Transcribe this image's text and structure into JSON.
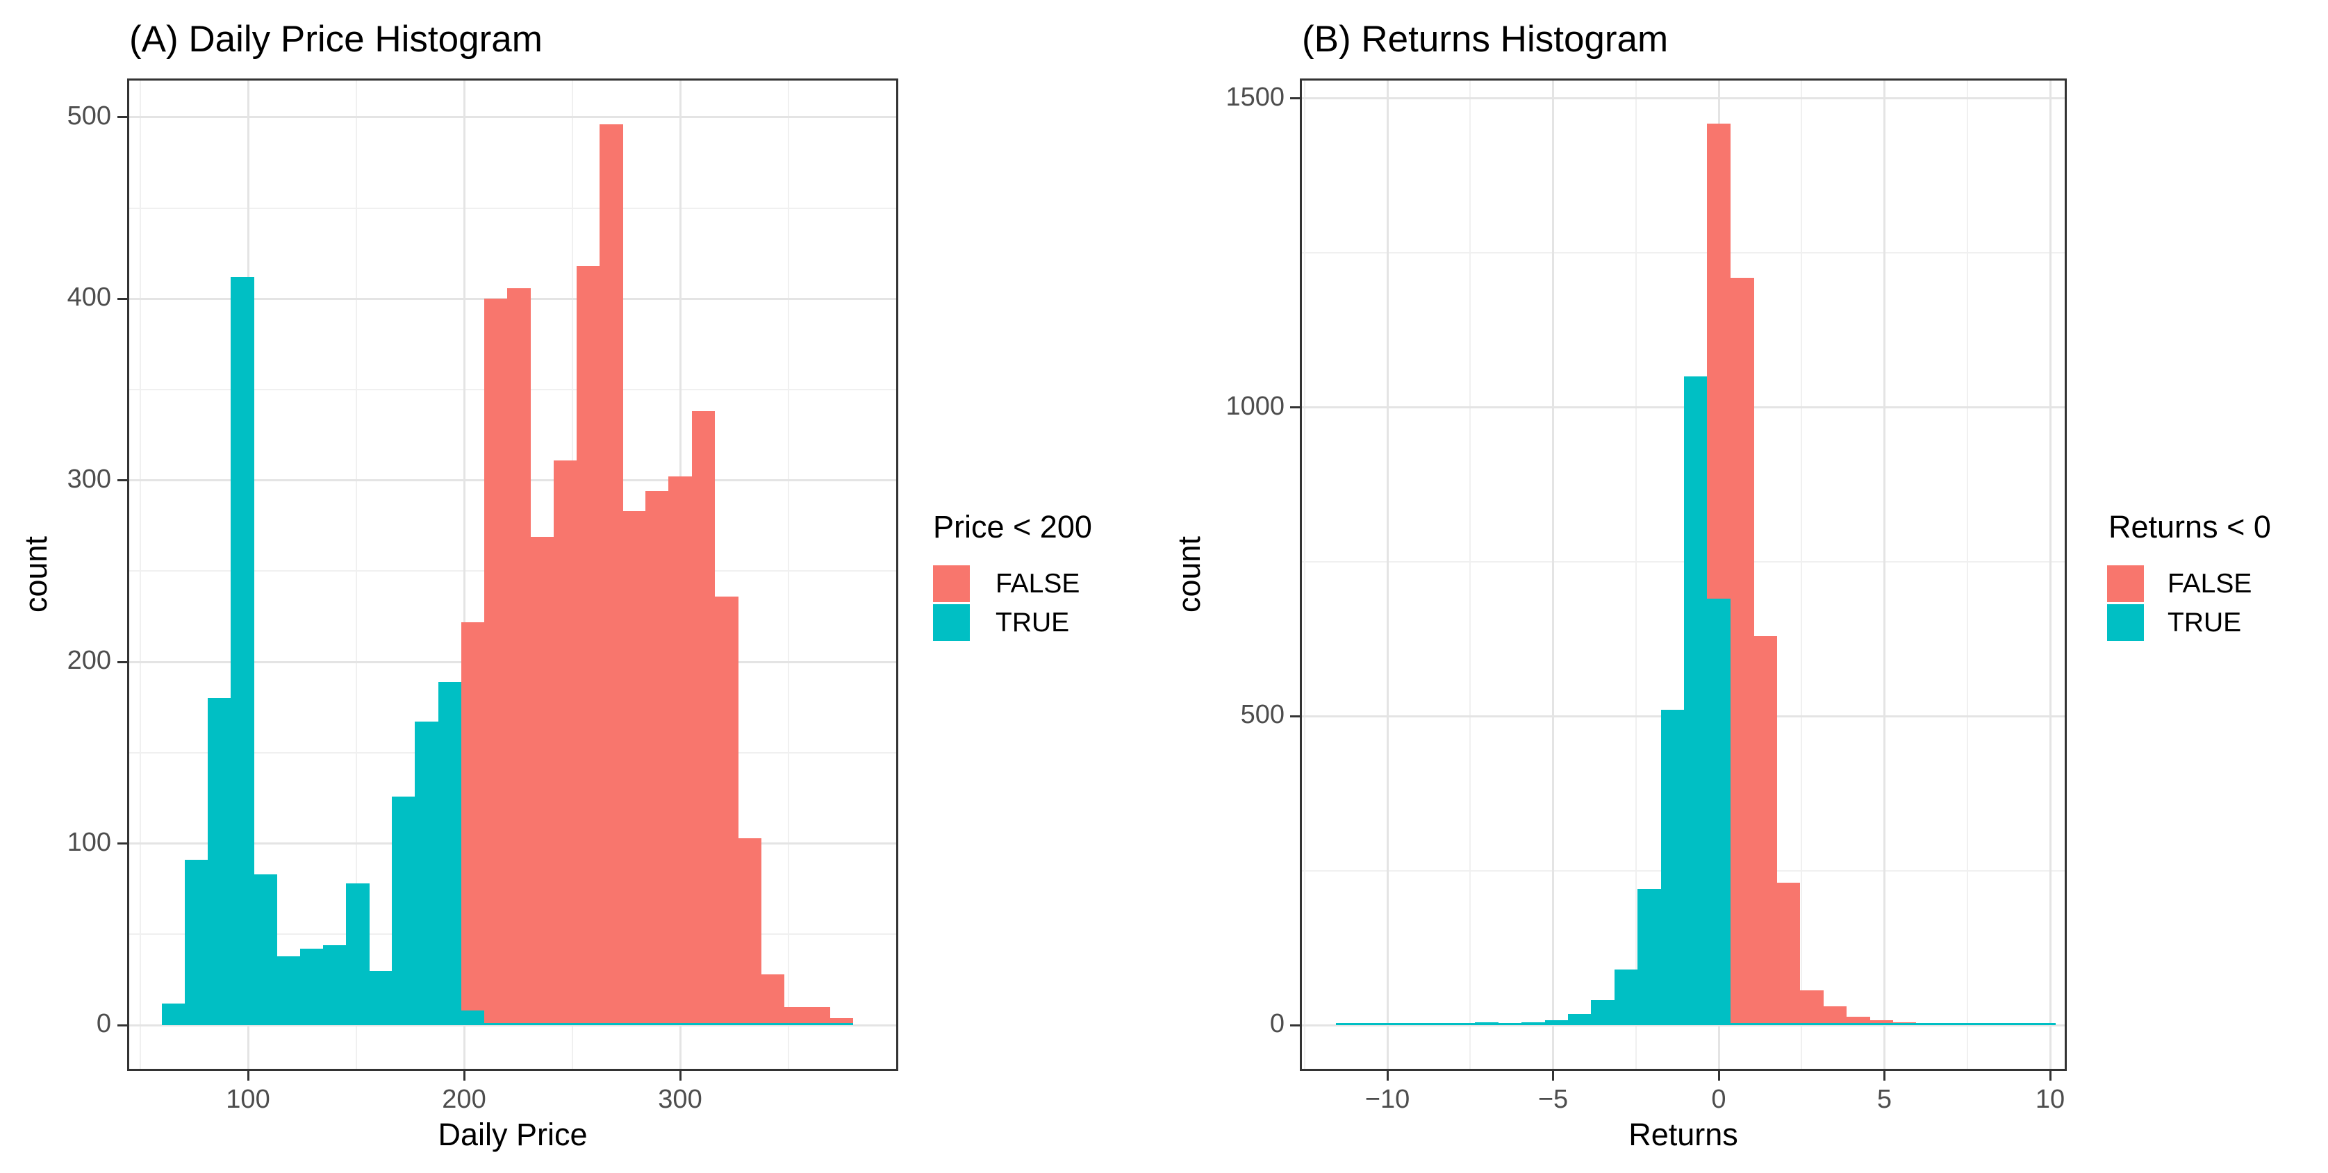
{
  "figure": {
    "background": "#ffffff"
  },
  "colors": {
    "false_fill": "#F8766D",
    "true_fill": "#00BFC4",
    "grid_major": "#e4e4e4",
    "grid_minor": "#f0f0f0",
    "panel_border": "#333333",
    "tick_label": "#4d4d4d",
    "text": "#000000"
  },
  "chart_data": [
    {
      "type": "bar",
      "subtype": "stacked-histogram",
      "panel": "A",
      "title": "(A) Daily Price Histogram",
      "xlabel": "Daily Price",
      "ylabel": "count",
      "legend": {
        "title": "Price < 200",
        "entries": [
          {
            "label": "FALSE",
            "color": "#F8766D"
          },
          {
            "label": "TRUE",
            "color": "#00BFC4"
          }
        ]
      },
      "x_ticks": [
        {
          "v": 100,
          "label": "100"
        },
        {
          "v": 200,
          "label": "200"
        },
        {
          "v": 300,
          "label": "300"
        }
      ],
      "x_minor": [
        50,
        150,
        250,
        350
      ],
      "y_ticks": [
        {
          "v": 0,
          "label": "0"
        },
        {
          "v": 100,
          "label": "100"
        },
        {
          "v": 200,
          "label": "200"
        },
        {
          "v": 300,
          "label": "300"
        },
        {
          "v": 400,
          "label": "400"
        },
        {
          "v": 500,
          "label": "500"
        }
      ],
      "y_minor": [
        50,
        150,
        250,
        350,
        450
      ],
      "xlim": [
        44,
        401
      ],
      "ylim": [
        0,
        521
      ],
      "binwidth": 10.667,
      "grid": true,
      "legend_position": "right",
      "bins_note": "each bin = [x_start, count_TRUE(teal), count_FALSE(red)]",
      "bins": [
        [
          60,
          12,
          0
        ],
        [
          70.67,
          91,
          0
        ],
        [
          81.33,
          180,
          0
        ],
        [
          92,
          412,
          0
        ],
        [
          102.67,
          83,
          0
        ],
        [
          113.33,
          38,
          0
        ],
        [
          124,
          42,
          0
        ],
        [
          134.67,
          44,
          0
        ],
        [
          145.33,
          78,
          0
        ],
        [
          156,
          30,
          0
        ],
        [
          166.67,
          126,
          0
        ],
        [
          177.33,
          167,
          0
        ],
        [
          188,
          189,
          0
        ],
        [
          198.67,
          8,
          214
        ],
        [
          209.33,
          0,
          400
        ],
        [
          220,
          0,
          406
        ],
        [
          230.67,
          0,
          269
        ],
        [
          241.33,
          0,
          311
        ],
        [
          252,
          0,
          418
        ],
        [
          262.67,
          0,
          496
        ],
        [
          273.33,
          0,
          283
        ],
        [
          284,
          0,
          294
        ],
        [
          294.67,
          0,
          302
        ],
        [
          305.33,
          0,
          338
        ],
        [
          316,
          0,
          236
        ],
        [
          326.67,
          0,
          103
        ],
        [
          337.33,
          0,
          28
        ],
        [
          348,
          0,
          10
        ],
        [
          358.67,
          0,
          10
        ],
        [
          369.33,
          0,
          4
        ]
      ]
    },
    {
      "type": "bar",
      "subtype": "stacked-histogram",
      "panel": "B",
      "title": "(B) Returns Histogram",
      "xlabel": "Returns",
      "ylabel": "count",
      "legend": {
        "title": "Returns < 0",
        "entries": [
          {
            "label": "FALSE",
            "color": "#F8766D"
          },
          {
            "label": "TRUE",
            "color": "#00BFC4"
          }
        ]
      },
      "x_ticks": [
        {
          "v": -10,
          "label": "−10"
        },
        {
          "v": -5,
          "label": "−5"
        },
        {
          "v": 0,
          "label": "0"
        },
        {
          "v": 5,
          "label": "5"
        },
        {
          "v": 10,
          "label": "10"
        }
      ],
      "x_minor": [
        -12.5,
        -7.5,
        -2.5,
        2.5,
        7.5
      ],
      "y_ticks": [
        {
          "v": 0,
          "label": "0"
        },
        {
          "v": 500,
          "label": "500"
        },
        {
          "v": 1000,
          "label": "1000"
        },
        {
          "v": 1500,
          "label": "1500"
        }
      ],
      "y_minor": [
        250,
        750,
        1250
      ],
      "xlim": [
        -12.6,
        10.5
      ],
      "ylim": [
        0,
        1532
      ],
      "binwidth": 0.7,
      "grid": true,
      "legend_position": "right",
      "bins_note": "each bin = [x_start, count_TRUE(teal), count_FALSE(red)]",
      "bins": [
        [
          -11.55,
          3,
          0
        ],
        [
          -10.85,
          1,
          0
        ],
        [
          -10.15,
          1,
          0
        ],
        [
          -9.45,
          1,
          0
        ],
        [
          -8.75,
          2,
          0
        ],
        [
          -8.05,
          2,
          0
        ],
        [
          -7.35,
          5,
          0
        ],
        [
          -6.65,
          3,
          0
        ],
        [
          -5.95,
          4,
          0
        ],
        [
          -5.25,
          8,
          0
        ],
        [
          -4.55,
          18,
          0
        ],
        [
          -3.85,
          40,
          0
        ],
        [
          -3.15,
          90,
          0
        ],
        [
          -2.45,
          220,
          0
        ],
        [
          -1.75,
          510,
          0
        ],
        [
          -1.05,
          1050,
          0
        ],
        [
          -0.35,
          690,
          770
        ],
        [
          0.35,
          0,
          1210
        ],
        [
          1.05,
          0,
          630
        ],
        [
          1.75,
          0,
          230
        ],
        [
          2.45,
          0,
          56
        ],
        [
          3.15,
          0,
          30
        ],
        [
          3.85,
          0,
          14
        ],
        [
          4.55,
          0,
          8
        ],
        [
          5.25,
          0,
          5
        ],
        [
          5.95,
          0,
          1
        ],
        [
          6.65,
          0,
          1
        ],
        [
          7.35,
          0,
          3
        ],
        [
          8.05,
          0,
          1
        ],
        [
          8.75,
          0,
          1
        ],
        [
          9.45,
          0,
          2
        ]
      ]
    }
  ]
}
